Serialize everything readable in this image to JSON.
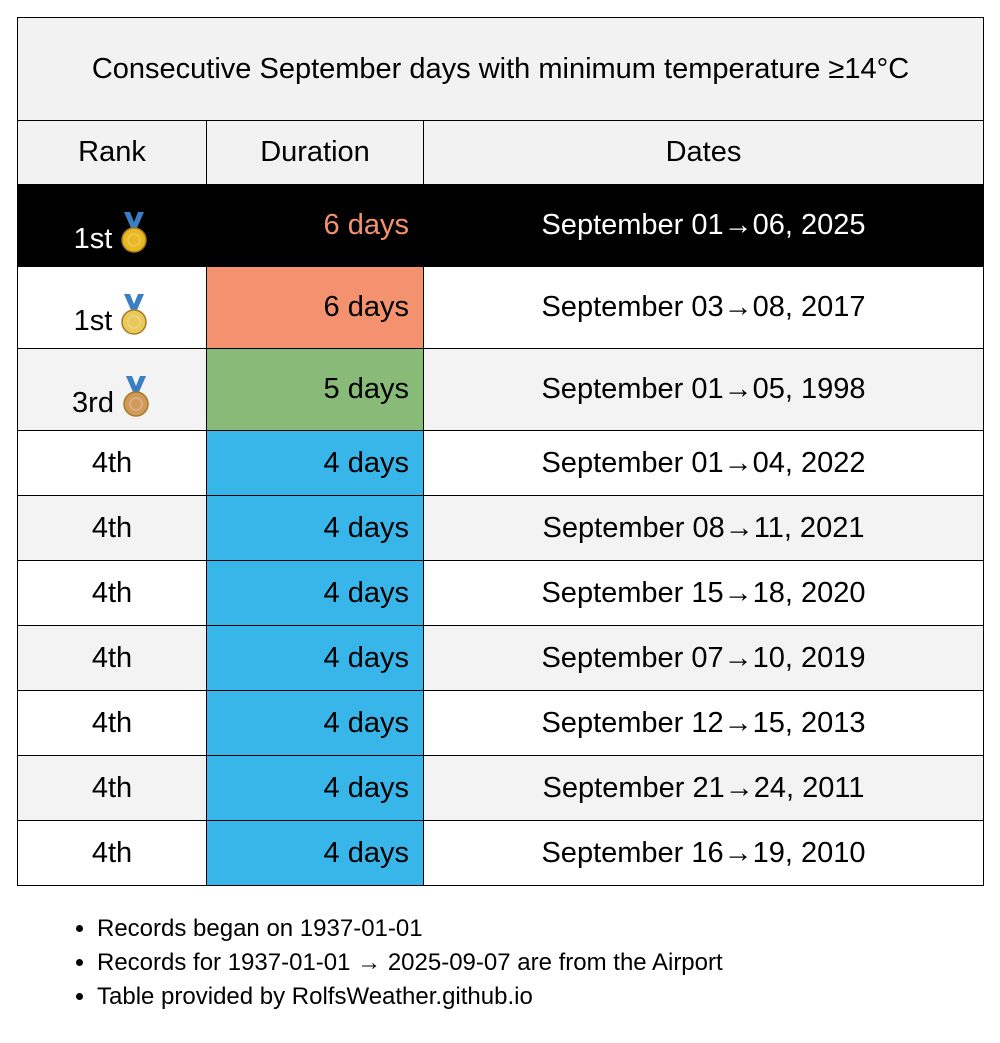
{
  "table": {
    "title": "Consecutive September days with minimum temperature ≥14°C",
    "headers": [
      "Rank",
      "Duration",
      "Dates"
    ],
    "rows": [
      {
        "rank": "1st",
        "duration": "6 days",
        "dates": "September 01→06, 2025",
        "color": "#f4916e"
      },
      {
        "rank": "1st",
        "duration": "6 days",
        "dates": "September 03→08, 2017",
        "color": "#f4916e"
      },
      {
        "rank": "3rd",
        "duration": "5 days",
        "dates": "September 01→05, 1998",
        "color": "#88bb77"
      },
      {
        "rank": "4th",
        "duration": "4 days",
        "dates": "September 01→04, 2022",
        "color": "#38b6ea"
      },
      {
        "rank": "4th",
        "duration": "4 days",
        "dates": "September 08→11, 2021",
        "color": "#38b6ea"
      },
      {
        "rank": "4th",
        "duration": "4 days",
        "dates": "September 15→18, 2020",
        "color": "#38b6ea"
      },
      {
        "rank": "4th",
        "duration": "4 days",
        "dates": "September 07→10, 2019",
        "color": "#38b6ea"
      },
      {
        "rank": "4th",
        "duration": "4 days",
        "dates": "September 12→15, 2013",
        "color": "#38b6ea"
      },
      {
        "rank": "4th",
        "duration": "4 days",
        "dates": "September 21→24, 2011",
        "color": "#38b6ea"
      },
      {
        "rank": "4th",
        "duration": "4 days",
        "dates": "September 16→19, 2010",
        "color": "#38b6ea"
      }
    ]
  },
  "notes": [
    "Records began on 1937-01-01",
    "Records for 1937-01-01 → 2025-09-07 are from the Airport",
    "Table provided by RolfsWeather.github.io"
  ]
}
